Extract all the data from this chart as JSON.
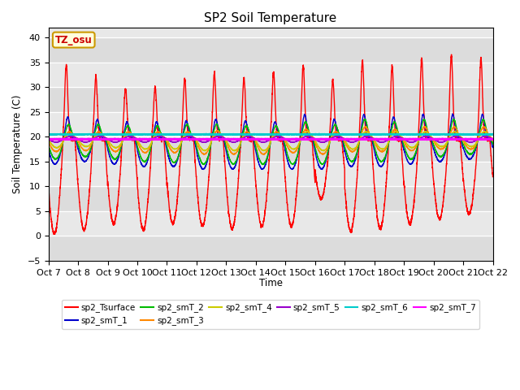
{
  "title": "SP2 Soil Temperature",
  "xlabel": "Time",
  "ylabel": "Soil Temperature (C)",
  "ylim": [
    -5,
    42
  ],
  "yticks": [
    -5,
    0,
    5,
    10,
    15,
    20,
    25,
    30,
    35,
    40
  ],
  "annotation": "TZ_osu",
  "annotation_color": "#cc0000",
  "annotation_bg": "#ffffdd",
  "annotation_border": "#cc9900",
  "series": [
    {
      "name": "sp2_Tsurface",
      "color": "#ff0000",
      "lw": 1.0
    },
    {
      "name": "sp2_smT_1",
      "color": "#0000cc",
      "lw": 1.0
    },
    {
      "name": "sp2_smT_2",
      "color": "#00bb00",
      "lw": 1.0
    },
    {
      "name": "sp2_smT_3",
      "color": "#ff8800",
      "lw": 1.0
    },
    {
      "name": "sp2_smT_4",
      "color": "#cccc00",
      "lw": 1.0
    },
    {
      "name": "sp2_smT_5",
      "color": "#9900cc",
      "lw": 1.0
    },
    {
      "name": "sp2_smT_6",
      "color": "#00cccc",
      "lw": 1.5
    },
    {
      "name": "sp2_smT_7",
      "color": "#ff00ff",
      "lw": 2.0
    }
  ],
  "xtick_labels": [
    "Oct 7",
    "Oct 8",
    "Oct 9",
    "Oct 10",
    "Oct 11",
    "Oct 12",
    "Oct 13",
    "Oct 14",
    "Oct 15",
    "Oct 16",
    "Oct 17",
    "Oct 18",
    "Oct 19",
    "Oct 20",
    "Oct 21",
    "Oct 22"
  ],
  "plot_bg": "#e8e8e8",
  "n_days": 15,
  "pts_per_day": 288,
  "surface_base": 19.5,
  "surface_day_peaks": [
    34.5,
    32.2,
    29.8,
    30.0,
    31.8,
    32.8,
    31.8,
    33.0,
    34.2,
    31.5,
    35.3,
    34.2,
    35.8,
    36.5,
    36.0
  ],
  "surface_night_mins": [
    0.5,
    1.2,
    2.5,
    1.2,
    2.5,
    2.0,
    1.5,
    2.0,
    2.0,
    7.5,
    1.0,
    1.5,
    2.5,
    3.5,
    4.5
  ],
  "smT1_peaks": [
    24.0,
    23.5,
    23.0,
    23.0,
    23.2,
    23.5,
    23.2,
    23.0,
    24.5,
    23.5,
    24.5,
    24.0,
    24.5,
    24.5,
    24.5
  ],
  "smT1_mins": [
    14.5,
    15.0,
    14.5,
    14.0,
    14.0,
    13.5,
    13.5,
    13.5,
    13.5,
    13.5,
    14.0,
    14.0,
    14.5,
    15.0,
    15.5
  ],
  "smT2_peaks": [
    22.5,
    22.5,
    22.2,
    22.2,
    22.5,
    22.5,
    22.2,
    22.2,
    23.0,
    22.5,
    23.5,
    23.0,
    23.5,
    23.5,
    23.5
  ],
  "smT2_mins": [
    15.5,
    16.0,
    15.5,
    15.0,
    14.8,
    14.5,
    14.5,
    14.5,
    14.5,
    14.5,
    15.0,
    15.0,
    15.5,
    16.0,
    16.5
  ],
  "smT3_peaks": [
    21.0,
    21.0,
    21.0,
    21.0,
    21.0,
    21.2,
    21.0,
    21.0,
    21.5,
    21.0,
    22.0,
    21.5,
    22.0,
    22.0,
    22.0
  ],
  "smT3_mins": [
    17.0,
    17.2,
    17.0,
    16.8,
    16.8,
    16.5,
    16.5,
    16.5,
    16.8,
    16.5,
    17.0,
    17.0,
    17.2,
    17.5,
    17.5
  ],
  "smT4_peaks": [
    20.5,
    20.5,
    20.5,
    20.5,
    20.5,
    20.5,
    20.5,
    20.5,
    21.0,
    20.5,
    21.0,
    21.0,
    21.0,
    21.0,
    21.0
  ],
  "smT4_mins": [
    17.8,
    18.0,
    17.8,
    17.5,
    17.5,
    17.2,
    17.2,
    17.2,
    17.5,
    17.2,
    17.5,
    17.5,
    17.8,
    18.0,
    18.0
  ],
  "smT5_flat": 19.5,
  "smT5_amp": 0.6,
  "smT6_flat": 20.5,
  "smT7_flat": 19.5
}
